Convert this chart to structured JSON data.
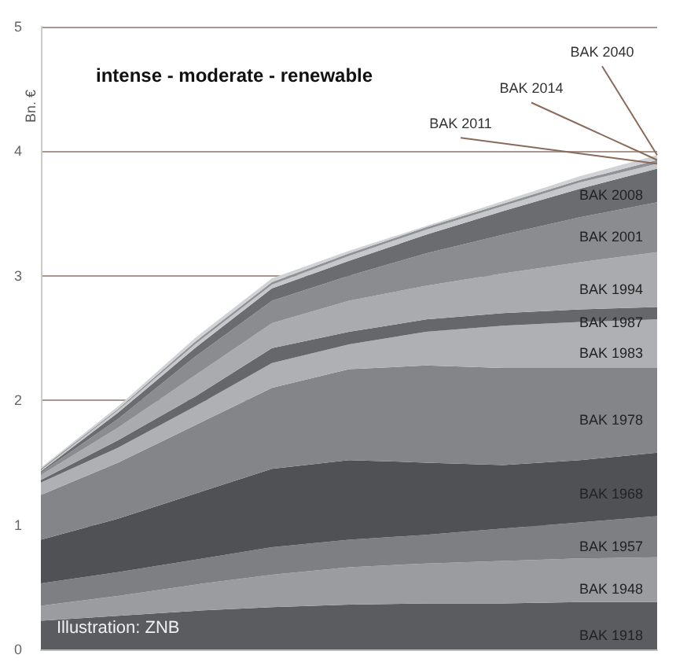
{
  "chart_data": {
    "type": "area",
    "stacked": true,
    "title": "intense - moderate - renewable",
    "ylabel": "Bn. €",
    "annotations": [
      "Illustration: ZNB"
    ],
    "categories": [
      null,
      null,
      null,
      null,
      null,
      null,
      null,
      null,
      null
    ],
    "ylim": [
      0,
      5
    ],
    "yticks": [
      0,
      1,
      2,
      3,
      4,
      5
    ],
    "grid": "y",
    "legend": false,
    "tick_labels": "y",
    "series": [
      {
        "name": "BAK 1918",
        "color": "#5a5c60",
        "values": [
          0.23,
          0.27,
          0.31,
          0.34,
          0.36,
          0.37,
          0.37,
          0.38,
          0.38
        ]
      },
      {
        "name": "BAK 1948",
        "color": "#9a9ca0",
        "values": [
          0.12,
          0.16,
          0.21,
          0.26,
          0.3,
          0.32,
          0.34,
          0.35,
          0.36
        ]
      },
      {
        "name": "BAK 1957",
        "color": "#7d7f83",
        "values": [
          0.18,
          0.19,
          0.2,
          0.22,
          0.22,
          0.23,
          0.26,
          0.29,
          0.33
        ]
      },
      {
        "name": "BAK 1968",
        "color": "#4f5155",
        "values": [
          0.35,
          0.43,
          0.53,
          0.63,
          0.64,
          0.58,
          0.51,
          0.5,
          0.51
        ]
      },
      {
        "name": "BAK 1978",
        "color": "#838589",
        "values": [
          0.36,
          0.45,
          0.55,
          0.65,
          0.73,
          0.78,
          0.78,
          0.74,
          0.68
        ]
      },
      {
        "name": "BAK 1983",
        "color": "#aeb0b4",
        "values": [
          0.1,
          0.12,
          0.15,
          0.2,
          0.2,
          0.27,
          0.34,
          0.37,
          0.39
        ]
      },
      {
        "name": "BAK 1987",
        "color": "#65676b",
        "values": [
          0.02,
          0.06,
          0.08,
          0.12,
          0.1,
          0.1,
          0.1,
          0.1,
          0.1
        ]
      },
      {
        "name": "BAK 1994",
        "color": "#a9abaf",
        "values": [
          0.04,
          0.1,
          0.17,
          0.2,
          0.25,
          0.27,
          0.32,
          0.38,
          0.44
        ]
      },
      {
        "name": "BAK 2001",
        "color": "#8a8c90",
        "values": [
          0.02,
          0.07,
          0.15,
          0.18,
          0.2,
          0.26,
          0.31,
          0.36,
          0.4
        ]
      },
      {
        "name": "BAK 2008",
        "color": "#6a6c70",
        "values": [
          0.01,
          0.05,
          0.07,
          0.1,
          0.12,
          0.15,
          0.19,
          0.23,
          0.27
        ]
      },
      {
        "name": "BAK 2011",
        "color": "#c5c7cb",
        "values": [
          0.01,
          0.02,
          0.03,
          0.03,
          0.04,
          0.04,
          0.04,
          0.05,
          0.04
        ]
      },
      {
        "name": "BAK 2014",
        "color": "#909296",
        "values": [
          0.01,
          0.01,
          0.02,
          0.02,
          0.02,
          0.02,
          0.02,
          0.02,
          0.03
        ]
      },
      {
        "name": "BAK 2040",
        "color": "#d0d2d6",
        "values": [
          0.01,
          0.02,
          0.03,
          0.03,
          0.02,
          0.01,
          0.02,
          0.03,
          0.04
        ]
      }
    ]
  }
}
